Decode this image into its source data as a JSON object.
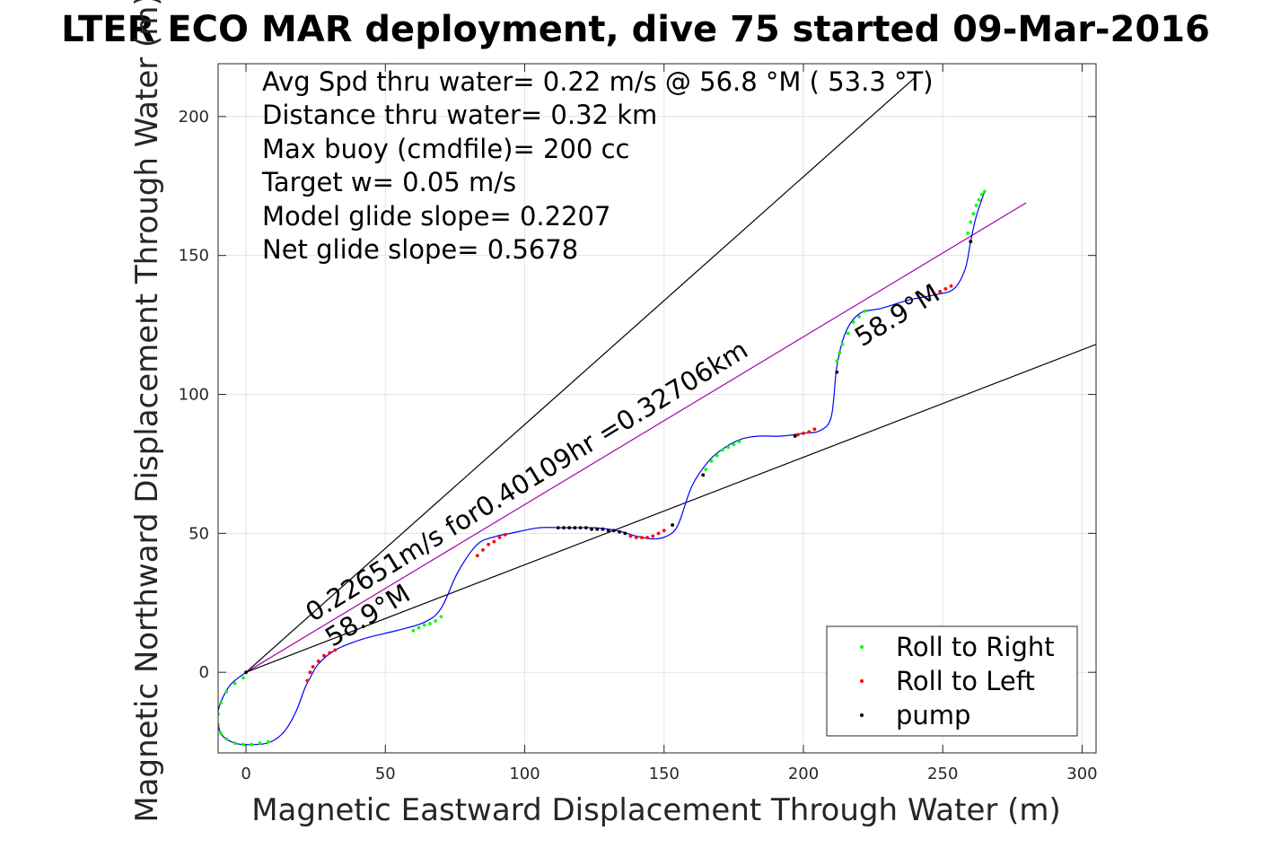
{
  "chart_data": {
    "type": "scatter",
    "title": "LTER ECO MAR deployment, dive 75 started 09-Mar-2016",
    "xlabel": "Magnetic Eastward Displacement Through Water (m)",
    "ylabel": "Magnetic Northward Displacement Through Water (m)",
    "xlim": [
      -10,
      305
    ],
    "ylim": [
      -29,
      219
    ],
    "xticks": [
      0,
      50,
      100,
      150,
      200,
      250,
      300
    ],
    "yticks": [
      0,
      50,
      100,
      150,
      200
    ],
    "grid": true,
    "info_lines": [
      "Avg Spd thru water=  0.22 m/s @  56.8 °M ( 53.3 °T)",
      "Distance thru water=  0.32 km",
      "Max buoy (cmdfile)= 200 cc",
      "Target w= 0.05 m/s",
      "Model glide slope= 0.2207",
      "Net glide slope= 0.5678"
    ],
    "annotations": [
      {
        "text": "0.22651m/s for0.40109hr =0.32706km",
        "x": 24,
        "y": 18,
        "angle_deg": 31.5
      },
      {
        "text": "58.9°M",
        "x": 31,
        "y": 9,
        "angle_deg": 31.5
      },
      {
        "text": "58.9°M",
        "x": 221,
        "y": 117,
        "angle_deg": 31.5
      }
    ],
    "reference_lines": [
      {
        "name": "bound-upper",
        "color": "#000000",
        "x": [
          0,
          240
        ],
        "y": [
          0,
          214
        ]
      },
      {
        "name": "heading",
        "color": "#aa00aa",
        "x": [
          0,
          280
        ],
        "y": [
          0,
          169
        ]
      },
      {
        "name": "bound-lower",
        "color": "#000000",
        "x": [
          0,
          305
        ],
        "y": [
          0,
          118
        ]
      }
    ],
    "track": {
      "color": "#0000ff",
      "x": [
        0,
        -6,
        -10,
        -9,
        -4,
        3,
        9,
        14,
        18,
        21,
        23,
        26,
        32,
        42,
        54,
        64,
        70,
        76,
        83,
        90,
        95,
        105,
        115,
        125,
        133,
        140,
        146,
        151,
        155,
        160,
        166,
        172,
        178,
        184,
        192,
        200,
        206,
        210,
        212,
        215,
        220,
        228,
        238,
        248,
        254,
        258,
        260,
        262,
        265
      ],
      "y": [
        0,
        -5,
        -14,
        -22,
        -25.5,
        -26,
        -25,
        -21,
        -14,
        -6,
        -2,
        3,
        8,
        12,
        15,
        18,
        23,
        36,
        46,
        49,
        50,
        52,
        52,
        52,
        51,
        49,
        48,
        49,
        53,
        67,
        76,
        81,
        84,
        85,
        85,
        86,
        87,
        92,
        110,
        122,
        129,
        131,
        134,
        136,
        138,
        145,
        155,
        164,
        173
      ]
    },
    "series": [
      {
        "name": "Roll to Right",
        "color": "#00ff00",
        "x": [
          -1,
          -4,
          -7,
          -9,
          -10,
          -10,
          -9,
          -7,
          -4,
          -1,
          2,
          5,
          8,
          60,
          62,
          64,
          66,
          68,
          70,
          165,
          167,
          169,
          171,
          173,
          175,
          177,
          212,
          213,
          214,
          216,
          218,
          220,
          222,
          259,
          260,
          261,
          262,
          263,
          264,
          265
        ],
        "y": [
          -2,
          -4,
          -7,
          -11,
          -15,
          -19,
          -22,
          -24,
          -25.5,
          -26,
          -26,
          -25.5,
          -25,
          15,
          16,
          17,
          17.5,
          18.5,
          20,
          73,
          76,
          78,
          80,
          81,
          82,
          83,
          112,
          115,
          118,
          122,
          126,
          128,
          130,
          158,
          162,
          165,
          168,
          170,
          172,
          173
        ]
      },
      {
        "name": "Roll to Left",
        "color": "#ff0000",
        "x": [
          22,
          23,
          24,
          26,
          28,
          30,
          32,
          83,
          85,
          87,
          89,
          91,
          93,
          138,
          140,
          142,
          144,
          146,
          148,
          150,
          198,
          200,
          202,
          204,
          247,
          249,
          251,
          253
        ],
        "y": [
          -3,
          0,
          2,
          4,
          6,
          7,
          8,
          42,
          44,
          46,
          47,
          48.5,
          49.5,
          49,
          48.5,
          48.5,
          48.5,
          49,
          50,
          51,
          85.5,
          86,
          86.5,
          87.5,
          136,
          137,
          138,
          139
        ]
      },
      {
        "name": "pump",
        "color": "#000000",
        "x": [
          0,
          112,
          114,
          116,
          118,
          120,
          122,
          124,
          126,
          128,
          130,
          132,
          134,
          136,
          153,
          164,
          197,
          212,
          260
        ],
        "y": [
          0,
          52,
          52,
          52,
          52,
          52,
          52,
          51.5,
          51.5,
          51.5,
          51,
          51,
          50.5,
          50,
          53,
          71,
          85,
          108,
          155
        ]
      }
    ],
    "legend": {
      "placement": "bottom-right",
      "entries": [
        "Roll to Right",
        "Roll to Left",
        "pump"
      ]
    }
  }
}
